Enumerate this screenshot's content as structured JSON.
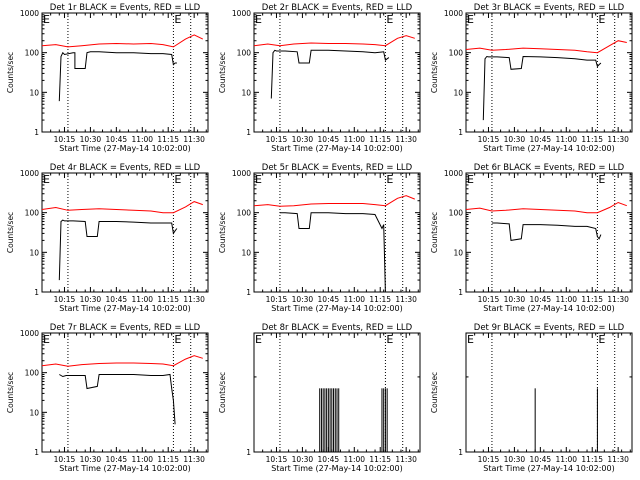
{
  "page": {
    "background": "#ffffff"
  },
  "common": {
    "ylabel": "Counts/sec",
    "xlabel": "Start Time (27-May-14 10:02:00)",
    "y_ticks": [
      "1",
      "10",
      "100",
      "1000"
    ],
    "x_ticks": [
      "10:15",
      "10:30",
      "10:45",
      "11:00",
      "11:15",
      "11:30"
    ],
    "flag_glyph": "E",
    "events_color": "#000000",
    "lld_color": "#ff0000"
  },
  "chart_data": [
    {
      "type": "line",
      "title": "Det 1r BLACK = Events, RED = LLD",
      "xlabel": "Start Time (27-May-14 10:02:00)",
      "ylabel": "Counts/sec",
      "xlim": [
        "10:02",
        "11:38"
      ],
      "ylim": [
        1,
        1000
      ],
      "yscale": "log",
      "flag_times": [
        "10:02",
        "11:18"
      ],
      "dotted_lines": [
        "10:17",
        "11:18",
        "11:28"
      ],
      "series": [
        {
          "name": "LLD",
          "color": "#ff0000",
          "x": [
            "10:02",
            "10:10",
            "10:17",
            "10:25",
            "10:35",
            "10:45",
            "10:55",
            "11:05",
            "11:12",
            "11:18",
            "11:25",
            "11:30",
            "11:35"
          ],
          "y": [
            150,
            160,
            140,
            150,
            165,
            170,
            165,
            170,
            160,
            140,
            220,
            280,
            220
          ]
        },
        {
          "name": "Events",
          "color": "#000000",
          "x": [
            "10:12",
            "10:13",
            "10:14",
            "10:15",
            "10:20",
            "10:21",
            "10:21",
            "10:27",
            "10:28",
            "10:30",
            "10:35",
            "10:45",
            "10:55",
            "11:05",
            "11:12",
            "11:17",
            "11:18",
            "11:19",
            "11:20"
          ],
          "y": [
            6,
            80,
            100,
            90,
            100,
            100,
            40,
            40,
            100,
            105,
            105,
            100,
            100,
            95,
            95,
            90,
            50,
            55,
            55
          ]
        }
      ]
    },
    {
      "type": "line",
      "title": "Det 2r BLACK = Events, RED = LLD",
      "xlabel": "Start Time (27-May-14 10:02:00)",
      "ylabel": "Counts/sec",
      "xlim": [
        "10:02",
        "11:38"
      ],
      "ylim": [
        1,
        1000
      ],
      "yscale": "log",
      "flag_times": [
        "10:02",
        "11:18"
      ],
      "dotted_lines": [
        "10:17",
        "11:18",
        "11:28"
      ],
      "series": [
        {
          "name": "LLD",
          "color": "#ff0000",
          "x": [
            "10:02",
            "10:10",
            "10:17",
            "10:25",
            "10:35",
            "10:45",
            "10:55",
            "11:05",
            "11:12",
            "11:18",
            "11:25",
            "11:30",
            "11:35"
          ],
          "y": [
            150,
            165,
            150,
            165,
            175,
            170,
            170,
            165,
            160,
            150,
            230,
            270,
            230
          ]
        },
        {
          "name": "Events",
          "color": "#000000",
          "x": [
            "10:12",
            "10:13",
            "10:14",
            "10:15",
            "10:20",
            "10:27",
            "10:28",
            "10:34",
            "10:35",
            "10:45",
            "10:55",
            "11:05",
            "11:12",
            "11:17",
            "11:18",
            "11:19",
            "11:20"
          ],
          "y": [
            7,
            100,
            115,
            110,
            110,
            105,
            55,
            55,
            115,
            115,
            110,
            105,
            100,
            105,
            65,
            70,
            75
          ]
        }
      ]
    },
    {
      "type": "line",
      "title": "Det 3r BLACK = Events, RED = LLD",
      "xlabel": "Start Time (27-May-14 10:02:00)",
      "ylabel": "Counts/sec",
      "xlim": [
        "10:02",
        "11:38"
      ],
      "ylim": [
        1,
        1000
      ],
      "yscale": "log",
      "flag_times": [
        "10:02",
        "11:18"
      ],
      "dotted_lines": [
        "10:17",
        "11:18",
        "11:28"
      ],
      "series": [
        {
          "name": "LLD",
          "color": "#ff0000",
          "x": [
            "10:02",
            "10:10",
            "10:17",
            "10:25",
            "10:35",
            "10:45",
            "10:55",
            "11:05",
            "11:12",
            "11:18",
            "11:25",
            "11:30",
            "11:35"
          ],
          "y": [
            120,
            130,
            115,
            120,
            130,
            125,
            120,
            115,
            105,
            100,
            150,
            200,
            180
          ]
        },
        {
          "name": "Events",
          "color": "#000000",
          "x": [
            "10:12",
            "10:13",
            "10:14",
            "10:15",
            "10:20",
            "10:27",
            "10:28",
            "10:34",
            "10:35",
            "10:45",
            "10:55",
            "11:05",
            "11:12",
            "11:17",
            "11:18",
            "11:19",
            "11:20"
          ],
          "y": [
            2,
            70,
            80,
            78,
            78,
            75,
            38,
            40,
            80,
            78,
            75,
            70,
            65,
            65,
            45,
            50,
            55
          ]
        }
      ]
    },
    {
      "type": "line",
      "title": "Det 4r BLACK = Events, RED = LLD",
      "xlabel": "Start Time (27-May-14 10:02:00)",
      "ylabel": "Counts/sec",
      "xlim": [
        "10:02",
        "11:38"
      ],
      "ylim": [
        1,
        1000
      ],
      "yscale": "log",
      "flag_times": [
        "10:02",
        "11:18"
      ],
      "dotted_lines": [
        "10:17",
        "11:18",
        "11:28"
      ],
      "series": [
        {
          "name": "LLD",
          "color": "#ff0000",
          "x": [
            "10:02",
            "10:10",
            "10:17",
            "10:25",
            "10:35",
            "10:45",
            "10:55",
            "11:05",
            "11:12",
            "11:18",
            "11:25",
            "11:30",
            "11:35"
          ],
          "y": [
            120,
            135,
            115,
            120,
            125,
            120,
            115,
            110,
            100,
            100,
            140,
            190,
            160
          ]
        },
        {
          "name": "Events",
          "color": "#000000",
          "x": [
            "10:12",
            "10:13",
            "10:14",
            "10:15",
            "10:20",
            "10:27",
            "10:28",
            "10:34",
            "10:35",
            "10:45",
            "10:55",
            "11:05",
            "11:12",
            "11:17",
            "11:18",
            "11:19",
            "11:20"
          ],
          "y": [
            2,
            60,
            65,
            62,
            62,
            60,
            25,
            25,
            60,
            60,
            58,
            55,
            55,
            55,
            30,
            35,
            40
          ]
        }
      ]
    },
    {
      "type": "line",
      "title": "Det 5r BLACK = Events, RED = LLD",
      "xlabel": "Start Time (27-May-14 10:02:00)",
      "ylabel": "Counts/sec",
      "xlim": [
        "10:02",
        "11:38"
      ],
      "ylim": [
        1,
        1000
      ],
      "yscale": "log",
      "flag_times": [
        "10:02",
        "11:18"
      ],
      "dotted_lines": [
        "10:17",
        "11:18",
        "11:28"
      ],
      "series": [
        {
          "name": "LLD",
          "color": "#ff0000",
          "x": [
            "10:02",
            "10:10",
            "10:17",
            "10:25",
            "10:35",
            "10:45",
            "10:55",
            "11:05",
            "11:12",
            "11:18",
            "11:25",
            "11:30",
            "11:35"
          ],
          "y": [
            150,
            160,
            145,
            150,
            165,
            170,
            170,
            170,
            160,
            150,
            230,
            270,
            220
          ]
        },
        {
          "name": "Events",
          "color": "#000000",
          "x": [
            "10:17",
            "10:20",
            "10:27",
            "10:28",
            "10:34",
            "10:35",
            "10:45",
            "10:55",
            "11:05",
            "11:12",
            "11:16",
            "11:17",
            "11:18"
          ],
          "y": [
            100,
            100,
            95,
            40,
            40,
            100,
            100,
            95,
            95,
            90,
            40,
            50,
            1
          ]
        }
      ]
    },
    {
      "type": "line",
      "title": "Det 6r BLACK = Events, RED = LLD",
      "xlabel": "Start Time (27-May-14 10:02:00)",
      "ylabel": "Counts/sec",
      "xlim": [
        "10:02",
        "11:38"
      ],
      "ylim": [
        1,
        1000
      ],
      "yscale": "log",
      "flag_times": [
        "10:02",
        "11:18"
      ],
      "dotted_lines": [
        "10:17",
        "11:18",
        "11:28"
      ],
      "series": [
        {
          "name": "LLD",
          "color": "#ff0000",
          "x": [
            "10:02",
            "10:10",
            "10:17",
            "10:25",
            "10:35",
            "10:45",
            "10:55",
            "11:05",
            "11:12",
            "11:18",
            "11:25",
            "11:30",
            "11:35"
          ],
          "y": [
            120,
            130,
            110,
            115,
            125,
            120,
            115,
            110,
            100,
            100,
            135,
            180,
            150
          ]
        },
        {
          "name": "Events",
          "color": "#000000",
          "x": [
            "10:17",
            "10:20",
            "10:27",
            "10:28",
            "10:34",
            "10:35",
            "10:45",
            "10:55",
            "11:05",
            "11:12",
            "11:17",
            "11:18",
            "11:19",
            "11:20"
          ],
          "y": [
            55,
            55,
            52,
            20,
            22,
            50,
            50,
            48,
            45,
            45,
            40,
            25,
            22,
            28
          ]
        }
      ]
    },
    {
      "type": "line",
      "title": "Det 7r BLACK = Events, RED = LLD",
      "xlabel": "Start Time (27-May-14 10:02:00)",
      "ylabel": "Counts/sec",
      "xlim": [
        "10:02",
        "11:38"
      ],
      "ylim": [
        1,
        1000
      ],
      "yscale": "log",
      "flag_times": [
        "10:02",
        "11:18"
      ],
      "dotted_lines": [
        "10:17",
        "11:18",
        "11:28"
      ],
      "series": [
        {
          "name": "LLD",
          "color": "#ff0000",
          "x": [
            "10:02",
            "10:10",
            "10:17",
            "10:25",
            "10:35",
            "10:45",
            "10:55",
            "11:05",
            "11:12",
            "11:18",
            "11:25",
            "11:30",
            "11:35"
          ],
          "y": [
            150,
            165,
            145,
            160,
            170,
            175,
            175,
            170,
            165,
            150,
            220,
            270,
            230
          ]
        },
        {
          "name": "Events",
          "color": "#000000",
          "x": [
            "10:12",
            "10:14",
            "10:16",
            "10:20",
            "10:27",
            "10:28",
            "10:34",
            "10:35",
            "10:45",
            "10:55",
            "11:05",
            "11:12",
            "11:16",
            "11:17",
            "11:18",
            "11:19"
          ],
          "y": [
            90,
            80,
            85,
            85,
            85,
            40,
            45,
            90,
            90,
            90,
            85,
            85,
            90,
            40,
            20,
            5
          ]
        }
      ]
    },
    {
      "type": "line",
      "title": "Det 8r BLACK = Events, RED = LLD",
      "xlabel": "Start Time (27-May-14 10:02:00)",
      "ylabel": "Counts/sec",
      "xlim": [
        "10:02",
        "11:38"
      ],
      "ylim": [
        1,
        3
      ],
      "yscale": "log",
      "flag_times": [
        "10:02",
        "11:18"
      ],
      "dotted_lines": [
        "10:17",
        "11:18",
        "11:28"
      ],
      "series": [
        {
          "name": "Events",
          "color": "#000000",
          "spikes": true,
          "x": [
            "10:40",
            "10:41",
            "10:42",
            "10:43",
            "10:44",
            "10:45",
            "10:46",
            "10:47",
            "10:48",
            "10:49",
            "10:50",
            "10:51",
            "11:16",
            "11:17",
            "11:18",
            "11:19"
          ],
          "y": [
            1.8,
            1.8,
            1.8,
            1.8,
            1.8,
            1.8,
            1.8,
            1.8,
            1.8,
            1.8,
            1.8,
            1.8,
            1.8,
            1.8,
            1.8,
            1.8
          ]
        }
      ]
    },
    {
      "type": "line",
      "title": "Det 9r BLACK = Events, RED = LLD",
      "xlabel": "Start Time (27-May-14 10:02:00)",
      "ylabel": "Counts/sec",
      "xlim": [
        "10:02",
        "11:38"
      ],
      "ylim": [
        1,
        3
      ],
      "yscale": "log",
      "flag_times": [
        "10:02",
        "11:18"
      ],
      "dotted_lines": [
        "10:17",
        "11:18",
        "11:28"
      ],
      "series": [
        {
          "name": "Events",
          "color": "#000000",
          "spikes": true,
          "x": [
            "10:42",
            "11:18"
          ],
          "y": [
            1.8,
            1.8
          ]
        }
      ]
    }
  ]
}
